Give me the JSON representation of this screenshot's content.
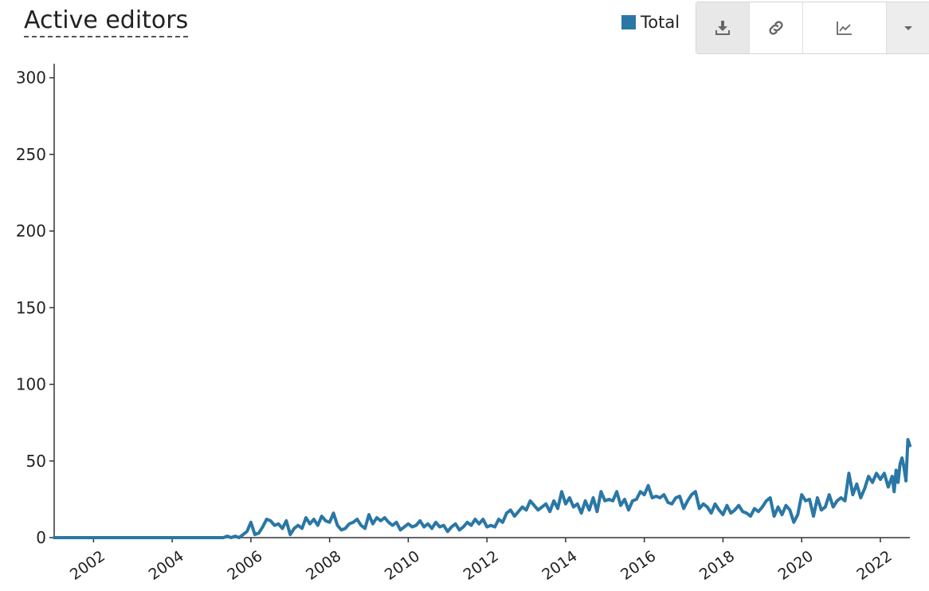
{
  "title": "Active editors",
  "legend": {
    "label": "Total",
    "color": "#2a77a6"
  },
  "toolbar": {
    "icons": [
      "download-icon",
      "link-icon",
      "line-chart-icon",
      "caret-down-icon"
    ]
  },
  "chart_data": {
    "type": "line",
    "ylim": [
      0,
      305
    ],
    "xlim": [
      2001.0,
      2022.75
    ],
    "yticks": [
      0,
      50,
      100,
      150,
      200,
      250,
      300
    ],
    "xticks": [
      2002,
      2004,
      2006,
      2008,
      2010,
      2012,
      2014,
      2016,
      2018,
      2020,
      2022
    ],
    "grid": false,
    "legend_position": "top-right",
    "series": [
      {
        "name": "Total",
        "color": "#2a77a6",
        "points": [
          [
            2001.0,
            0
          ],
          [
            2005.3,
            0
          ],
          [
            2005.4,
            1
          ],
          [
            2005.5,
            0
          ],
          [
            2005.6,
            1
          ],
          [
            2005.7,
            0
          ],
          [
            2005.8,
            2
          ],
          [
            2005.9,
            4
          ],
          [
            2006.0,
            10
          ],
          [
            2006.1,
            2
          ],
          [
            2006.2,
            3
          ],
          [
            2006.3,
            7
          ],
          [
            2006.4,
            12
          ],
          [
            2006.5,
            11
          ],
          [
            2006.6,
            8
          ],
          [
            2006.7,
            9
          ],
          [
            2006.8,
            6
          ],
          [
            2006.9,
            11
          ],
          [
            2007.0,
            2
          ],
          [
            2007.1,
            6
          ],
          [
            2007.2,
            8
          ],
          [
            2007.3,
            6
          ],
          [
            2007.4,
            13
          ],
          [
            2007.5,
            9
          ],
          [
            2007.6,
            12
          ],
          [
            2007.7,
            8
          ],
          [
            2007.8,
            14
          ],
          [
            2007.9,
            11
          ],
          [
            2008.0,
            10
          ],
          [
            2008.1,
            16
          ],
          [
            2008.2,
            8
          ],
          [
            2008.3,
            5
          ],
          [
            2008.4,
            6
          ],
          [
            2008.5,
            9
          ],
          [
            2008.6,
            10
          ],
          [
            2008.7,
            12
          ],
          [
            2008.8,
            8
          ],
          [
            2008.9,
            6
          ],
          [
            2009.0,
            15
          ],
          [
            2009.1,
            9
          ],
          [
            2009.2,
            13
          ],
          [
            2009.3,
            11
          ],
          [
            2009.4,
            13
          ],
          [
            2009.5,
            10
          ],
          [
            2009.6,
            8
          ],
          [
            2009.7,
            10
          ],
          [
            2009.8,
            5
          ],
          [
            2009.9,
            7
          ],
          [
            2010.0,
            9
          ],
          [
            2010.1,
            7
          ],
          [
            2010.2,
            8
          ],
          [
            2010.3,
            11
          ],
          [
            2010.4,
            7
          ],
          [
            2010.5,
            9
          ],
          [
            2010.6,
            6
          ],
          [
            2010.7,
            10
          ],
          [
            2010.8,
            7
          ],
          [
            2010.9,
            8
          ],
          [
            2011.0,
            4
          ],
          [
            2011.1,
            7
          ],
          [
            2011.2,
            9
          ],
          [
            2011.3,
            5
          ],
          [
            2011.4,
            7
          ],
          [
            2011.5,
            10
          ],
          [
            2011.6,
            8
          ],
          [
            2011.7,
            12
          ],
          [
            2011.8,
            9
          ],
          [
            2011.9,
            12
          ],
          [
            2012.0,
            7
          ],
          [
            2012.1,
            8
          ],
          [
            2012.2,
            7
          ],
          [
            2012.3,
            12
          ],
          [
            2012.4,
            10
          ],
          [
            2012.5,
            16
          ],
          [
            2012.6,
            18
          ],
          [
            2012.7,
            14
          ],
          [
            2012.8,
            17
          ],
          [
            2012.9,
            20
          ],
          [
            2013.0,
            18
          ],
          [
            2013.1,
            24
          ],
          [
            2013.2,
            21
          ],
          [
            2013.3,
            18
          ],
          [
            2013.4,
            20
          ],
          [
            2013.5,
            22
          ],
          [
            2013.6,
            17
          ],
          [
            2013.7,
            24
          ],
          [
            2013.8,
            19
          ],
          [
            2013.9,
            30
          ],
          [
            2014.0,
            22
          ],
          [
            2014.1,
            26
          ],
          [
            2014.2,
            20
          ],
          [
            2014.3,
            22
          ],
          [
            2014.4,
            16
          ],
          [
            2014.5,
            24
          ],
          [
            2014.6,
            18
          ],
          [
            2014.7,
            26
          ],
          [
            2014.8,
            17
          ],
          [
            2014.9,
            30
          ],
          [
            2015.0,
            24
          ],
          [
            2015.1,
            25
          ],
          [
            2015.2,
            24
          ],
          [
            2015.3,
            30
          ],
          [
            2015.4,
            21
          ],
          [
            2015.5,
            25
          ],
          [
            2015.6,
            18
          ],
          [
            2015.7,
            24
          ],
          [
            2015.8,
            25
          ],
          [
            2015.9,
            30
          ],
          [
            2016.0,
            28
          ],
          [
            2016.1,
            34
          ],
          [
            2016.2,
            26
          ],
          [
            2016.3,
            27
          ],
          [
            2016.4,
            26
          ],
          [
            2016.5,
            28
          ],
          [
            2016.6,
            23
          ],
          [
            2016.7,
            22
          ],
          [
            2016.8,
            26
          ],
          [
            2016.9,
            27
          ],
          [
            2017.0,
            19
          ],
          [
            2017.1,
            24
          ],
          [
            2017.2,
            28
          ],
          [
            2017.3,
            30
          ],
          [
            2017.4,
            19
          ],
          [
            2017.5,
            22
          ],
          [
            2017.6,
            20
          ],
          [
            2017.7,
            16
          ],
          [
            2017.8,
            22
          ],
          [
            2017.9,
            18
          ],
          [
            2018.0,
            15
          ],
          [
            2018.1,
            21
          ],
          [
            2018.2,
            16
          ],
          [
            2018.3,
            18
          ],
          [
            2018.4,
            21
          ],
          [
            2018.5,
            17
          ],
          [
            2018.6,
            16
          ],
          [
            2018.7,
            14
          ],
          [
            2018.8,
            19
          ],
          [
            2018.9,
            17
          ],
          [
            2019.0,
            20
          ],
          [
            2019.1,
            24
          ],
          [
            2019.2,
            26
          ],
          [
            2019.3,
            14
          ],
          [
            2019.4,
            20
          ],
          [
            2019.5,
            15
          ],
          [
            2019.6,
            21
          ],
          [
            2019.7,
            18
          ],
          [
            2019.8,
            10
          ],
          [
            2019.9,
            15
          ],
          [
            2020.0,
            28
          ],
          [
            2020.1,
            24
          ],
          [
            2020.2,
            25
          ],
          [
            2020.3,
            14
          ],
          [
            2020.4,
            26
          ],
          [
            2020.5,
            18
          ],
          [
            2020.6,
            20
          ],
          [
            2020.7,
            28
          ],
          [
            2020.8,
            20
          ],
          [
            2020.9,
            24
          ],
          [
            2021.0,
            26
          ],
          [
            2021.1,
            24
          ],
          [
            2021.2,
            42
          ],
          [
            2021.3,
            28
          ],
          [
            2021.4,
            35
          ],
          [
            2021.5,
            26
          ],
          [
            2021.6,
            32
          ],
          [
            2021.7,
            40
          ],
          [
            2021.8,
            36
          ],
          [
            2021.9,
            42
          ],
          [
            2022.0,
            38
          ],
          [
            2022.1,
            42
          ],
          [
            2022.2,
            33
          ],
          [
            2022.3,
            40
          ],
          [
            2022.35,
            30
          ],
          [
            2022.4,
            44
          ],
          [
            2022.45,
            36
          ],
          [
            2022.5,
            48
          ],
          [
            2022.55,
            52
          ],
          [
            2022.6,
            46
          ],
          [
            2022.65,
            37
          ],
          [
            2022.7,
            64
          ],
          [
            2022.75,
            60
          ]
        ]
      }
    ]
  }
}
